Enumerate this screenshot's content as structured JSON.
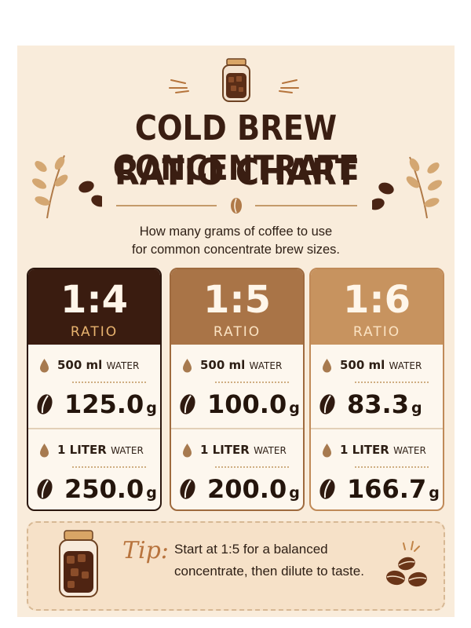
{
  "header": {
    "title_line1": "COLD BREW CONCENTRATE",
    "title_line2": "RATIO CHART",
    "subtitle_line1": "How many grams of coffee to use",
    "subtitle_line2": "for common concentrate brew sizes."
  },
  "cards": [
    {
      "ratio": "1:4",
      "ratio_label": "RATIO",
      "rows": [
        {
          "water_amount": "500 ml",
          "water_unit": "WATER",
          "coffee_amount": "125.0",
          "coffee_unit": "g"
        },
        {
          "water_amount": "1 LITER",
          "water_unit": "WATER",
          "coffee_amount": "250.0",
          "coffee_unit": "g"
        }
      ]
    },
    {
      "ratio": "1:5",
      "ratio_label": "RATIO",
      "rows": [
        {
          "water_amount": "500 ml",
          "water_unit": "WATER",
          "coffee_amount": "100.0",
          "coffee_unit": "g"
        },
        {
          "water_amount": "1 LITER",
          "water_unit": "WATER",
          "coffee_amount": "200.0",
          "coffee_unit": "g"
        }
      ]
    },
    {
      "ratio": "1:6",
      "ratio_label": "RATIO",
      "rows": [
        {
          "water_amount": "500 ml",
          "water_unit": "WATER",
          "coffee_amount": "83.3",
          "coffee_unit": "g"
        },
        {
          "water_amount": "1 LITER",
          "water_unit": "WATER",
          "coffee_amount": "166.7",
          "coffee_unit": "g"
        }
      ]
    }
  ],
  "tip": {
    "label": "Tip:",
    "line1": "Start at 1:5 for a balanced",
    "line2": "concentrate, then dilute to taste."
  },
  "colors": {
    "background": "#f9ecdb",
    "card_1_header": "#3a1c10",
    "card_2_header": "#a97447",
    "card_3_header": "#c7935f",
    "accent": "#e8b36f"
  },
  "icons": [
    "coffee-jar-icon",
    "water-drop-icon",
    "coffee-bean-icon",
    "leaf-branch-icon"
  ]
}
